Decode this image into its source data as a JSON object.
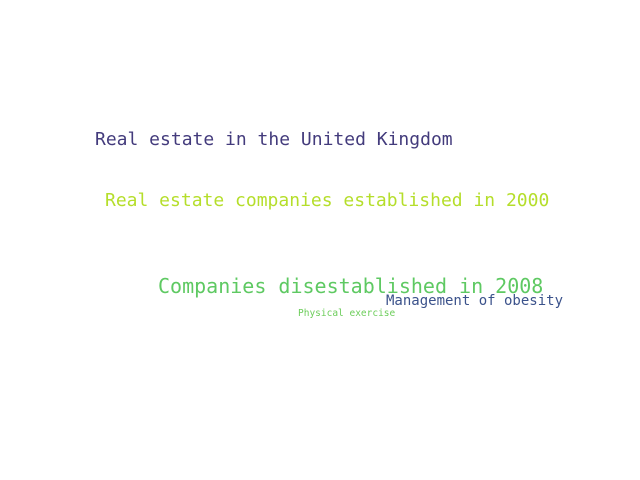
{
  "words": [
    {
      "text": "Real estate in the United Kingdom",
      "color": "#433b7c"
    },
    {
      "text": "Real estate companies established in 2000",
      "color": "#b5de2b"
    },
    {
      "text": "Companies disestablished in 2008",
      "color": "#5ec962"
    },
    {
      "text": "Management of obesity",
      "color": "#3b528b"
    },
    {
      "text": "Physical exercise",
      "color": "#6ccd5a"
    }
  ]
}
